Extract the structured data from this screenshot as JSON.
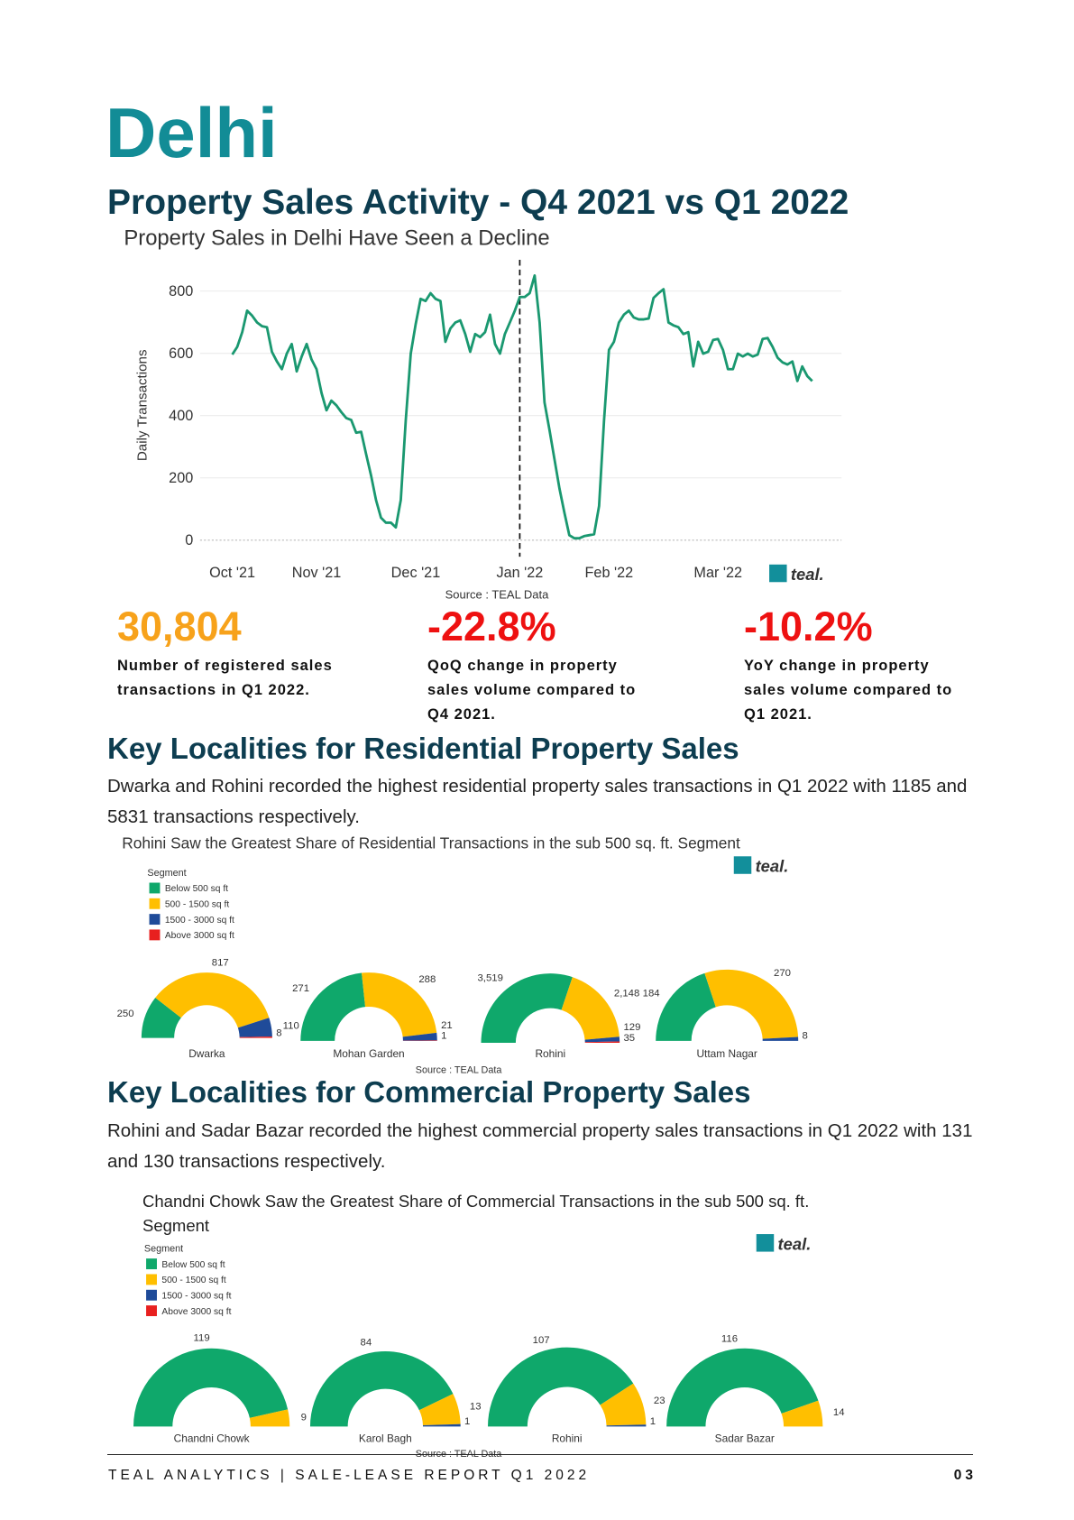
{
  "header": {
    "title": "Delhi",
    "subtitle": "Property Sales Activity - Q4 2021 vs Q1 2022"
  },
  "chart_data": [
    {
      "type": "line",
      "title": "Property Sales in Delhi Have Seen a Decline",
      "ylabel": "Daily Transactions",
      "categories": [
        "Oct '21",
        null,
        null,
        null,
        null,
        null,
        null,
        null,
        null,
        null,
        null,
        null,
        null,
        null,
        null,
        null,
        null,
        "Nov '21",
        null,
        null,
        null,
        null,
        null,
        null,
        null,
        null,
        null,
        null,
        null,
        null,
        null,
        null,
        null,
        null,
        null,
        null,
        null,
        "Dec '21",
        null,
        null,
        null,
        null,
        null,
        null,
        null,
        null,
        null,
        null,
        null,
        null,
        null,
        null,
        null,
        null,
        null,
        null,
        null,
        null,
        "Jan '22",
        null,
        null,
        null,
        null,
        null,
        null,
        null,
        null,
        null,
        null,
        null,
        null,
        null,
        null,
        null,
        null,
        null,
        "Feb '22",
        null,
        null,
        null,
        null,
        null,
        null,
        null,
        null,
        null,
        null,
        null,
        null,
        null,
        null,
        null,
        null,
        null,
        null,
        null,
        null,
        null,
        "Mar '22",
        null,
        null,
        null,
        null,
        null,
        null,
        null,
        null,
        null,
        null,
        null,
        null,
        null,
        null,
        null,
        null,
        null,
        null,
        null
      ],
      "values": [
        596,
        621,
        668,
        737,
        721,
        699,
        687,
        684,
        605,
        574,
        549,
        599,
        630,
        542,
        590,
        630,
        580,
        549,
        473,
        417,
        448,
        433,
        411,
        392,
        386,
        345,
        348,
        276,
        207,
        129,
        72,
        56,
        56,
        41,
        129,
        386,
        599,
        693,
        775,
        768,
        793,
        775,
        768,
        637,
        680,
        699,
        706,
        662,
        605,
        662,
        652,
        668,
        724,
        630,
        599,
        662,
        699,
        737,
        781,
        781,
        793,
        850,
        699,
        442,
        354,
        260,
        166,
        88,
        16,
        6,
        6,
        13,
        16,
        19,
        110,
        386,
        611,
        637,
        699,
        724,
        737,
        715,
        709,
        709,
        712,
        778,
        793,
        806,
        699,
        690,
        684,
        662,
        668,
        558,
        637,
        599,
        605,
        643,
        646,
        611,
        549,
        549,
        599,
        590,
        599,
        590,
        596,
        646,
        649,
        621,
        586,
        571,
        564,
        574,
        511,
        558,
        527,
        511
      ],
      "color": "#1a9870",
      "ylim": [
        -50,
        880
      ],
      "yticks": [
        0,
        200,
        400,
        600,
        800
      ],
      "grid": true,
      "source": "Source : TEAL Data",
      "logo": "teal."
    },
    {
      "type": "semi-donut",
      "title": "Rohini Saw the Greatest Share of Residential Transactions in the sub 500 sq. ft. Segment",
      "legend_title": "Segment",
      "categories": [
        "Dwarka",
        "Mohan Garden",
        "Rohini",
        "Uttam Nagar"
      ],
      "series": [
        {
          "name": "Below 500 sq ft",
          "color": "#0fa86b",
          "values": [
            250,
            271,
            3519,
            184
          ],
          "value_labels": [
            "250",
            "271",
            "3,519",
            "184"
          ]
        },
        {
          "name": "500 - 1500 sq ft",
          "color": "#ffbf00",
          "values": [
            817,
            288,
            2148,
            270
          ],
          "value_labels": [
            "817",
            "288",
            "2,148",
            "270"
          ]
        },
        {
          "name": "1500 - 3000 sq ft",
          "color": "#1f4b99",
          "values": [
            110,
            21,
            129,
            8
          ]
        },
        {
          "name": "Above 3000 sq ft",
          "color": "#e8201f",
          "values": [
            8,
            1,
            35,
            null
          ]
        }
      ],
      "source": "Source : TEAL Data",
      "logo": "teal."
    },
    {
      "type": "semi-donut",
      "title": "Chandni Chowk Saw the Greatest Share of Commercial Transactions in the sub 500 sq. ft. Segment",
      "legend_title": "Segment",
      "categories": [
        "Chandni Chowk",
        "Karol Bagh",
        "Rohini",
        "Sadar Bazar"
      ],
      "series": [
        {
          "name": "Below 500 sq ft",
          "color": "#0fa86b",
          "values": [
            119,
            84,
            107,
            116
          ]
        },
        {
          "name": "500 - 1500 sq ft",
          "color": "#ffbf00",
          "values": [
            9,
            13,
            23,
            14
          ]
        },
        {
          "name": "1500 - 3000 sq ft",
          "color": "#1f4b99",
          "values": [
            null,
            1,
            1,
            null
          ]
        },
        {
          "name": "Above 3000 sq ft",
          "color": "#e8201f",
          "values": [
            null,
            null,
            null,
            null
          ]
        }
      ],
      "source": "Source : TEAL Data",
      "logo": "teal."
    }
  ],
  "stats": [
    {
      "value": "30,804",
      "text": "Number of registered sales transactions in Q1 2022."
    },
    {
      "value": "-22.8%",
      "text": "QoQ change in property sales volume compared to Q4 2021."
    },
    {
      "value": "-10.2%",
      "text": "YoY change in property sales volume compared to Q1 2021."
    }
  ],
  "sections": [
    {
      "heading": "Key Localities for Residential Property Sales",
      "text": "Dwarka and Rohini recorded the highest residential property sales transactions in Q1 2022 with 1185 and 5831 transactions respectively."
    },
    {
      "heading": "Key Localities for Commercial Property Sales",
      "text": "Rohini and Sadar Bazar recorded the highest commercial property sales transactions in Q1 2022 with 131 and 130 transactions respectively."
    }
  ],
  "footer": {
    "text": "TEAL ANALYTICS | SALE-LEASE REPORT Q1 2022",
    "page": "03"
  }
}
